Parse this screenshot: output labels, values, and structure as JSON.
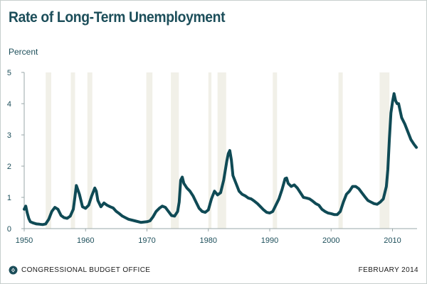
{
  "header": {
    "title": "Rate of Long-Term Unemployment"
  },
  "footer": {
    "org": "CONGRESSIONAL BUDGET OFFICE",
    "date": "FEBRUARY 2014",
    "logo_icon": "cbo-logo-icon"
  },
  "colors": {
    "line": "#0f4a55",
    "recession_band": "#f1f0e8",
    "axis": "#9aa7a8",
    "text": "#1c4e5a"
  },
  "chart_data": {
    "type": "line",
    "title": "Rate of Long-Term Unemployment",
    "ylabel": "Percent",
    "xlabel": "",
    "xlim": [
      1950,
      2014
    ],
    "ylim": [
      0,
      5
    ],
    "x_ticks": [
      1950,
      1960,
      1970,
      1980,
      1990,
      2000,
      2010
    ],
    "y_ticks": [
      0,
      1,
      2,
      3,
      4,
      5
    ],
    "grid": false,
    "recession_bands": [
      [
        1953.5,
        1954.4
      ],
      [
        1957.6,
        1958.3
      ],
      [
        1960.3,
        1961.1
      ],
      [
        1969.9,
        1970.9
      ],
      [
        1973.9,
        1975.2
      ],
      [
        1980.0,
        1980.5
      ],
      [
        1981.5,
        1982.9
      ],
      [
        1990.5,
        1991.2
      ],
      [
        2001.2,
        2001.9
      ],
      [
        2007.9,
        2009.5
      ]
    ],
    "series": [
      {
        "x": [
          1950.0,
          1950.25,
          1950.5,
          1950.75,
          1951.0,
          1951.5,
          1952.0,
          1952.5,
          1953.0,
          1953.5,
          1954.0,
          1954.5,
          1955.0,
          1955.5,
          1956.0,
          1956.5,
          1957.0,
          1957.5,
          1958.0,
          1958.25,
          1958.5,
          1959.0,
          1959.5,
          1960.0,
          1960.5,
          1961.0,
          1961.5,
          1961.75,
          1962.0,
          1962.5,
          1963.0,
          1963.5,
          1964.0,
          1964.5,
          1965.0,
          1965.5,
          1966.0,
          1966.5,
          1967.0,
          1968.0,
          1969.0,
          1970.0,
          1970.5,
          1971.0,
          1971.5,
          1972.0,
          1972.5,
          1973.0,
          1973.5,
          1974.0,
          1974.5,
          1975.0,
          1975.25,
          1975.5,
          1975.75,
          1976.0,
          1976.5,
          1977.0,
          1977.5,
          1978.0,
          1978.5,
          1979.0,
          1979.5,
          1980.0,
          1980.5,
          1981.0,
          1981.5,
          1982.0,
          1982.5,
          1983.0,
          1983.25,
          1983.5,
          1983.75,
          1984.0,
          1984.5,
          1985.0,
          1985.5,
          1986.0,
          1986.5,
          1987.0,
          1987.5,
          1988.0,
          1988.5,
          1989.0,
          1989.5,
          1990.0,
          1990.5,
          1991.0,
          1991.5,
          1992.0,
          1992.5,
          1992.75,
          1993.0,
          1993.5,
          1994.0,
          1994.5,
          1995.0,
          1995.5,
          1996.0,
          1996.5,
          1997.0,
          1997.5,
          1998.0,
          1998.5,
          1999.0,
          1999.5,
          2000.0,
          2000.5,
          2001.0,
          2001.5,
          2002.0,
          2002.5,
          2003.0,
          2003.5,
          2004.0,
          2004.5,
          2005.0,
          2005.5,
          2006.0,
          2006.5,
          2007.0,
          2007.5,
          2008.0,
          2008.5,
          2009.0,
          2009.25,
          2009.5,
          2009.75,
          2010.0,
          2010.25,
          2010.5,
          2010.75,
          2011.0,
          2011.5,
          2012.0,
          2012.5,
          2013.0,
          2013.5,
          2013.9
        ],
        "values": [
          0.62,
          0.72,
          0.5,
          0.32,
          0.22,
          0.18,
          0.15,
          0.14,
          0.13,
          0.15,
          0.3,
          0.55,
          0.68,
          0.62,
          0.42,
          0.35,
          0.33,
          0.4,
          0.62,
          1.0,
          1.38,
          1.1,
          0.7,
          0.65,
          0.75,
          1.05,
          1.3,
          1.2,
          0.9,
          0.7,
          0.82,
          0.75,
          0.7,
          0.66,
          0.55,
          0.48,
          0.4,
          0.35,
          0.3,
          0.25,
          0.2,
          0.22,
          0.25,
          0.38,
          0.55,
          0.65,
          0.72,
          0.68,
          0.55,
          0.42,
          0.4,
          0.55,
          0.85,
          1.55,
          1.65,
          1.45,
          1.3,
          1.2,
          1.05,
          0.85,
          0.65,
          0.55,
          0.52,
          0.6,
          0.95,
          1.2,
          1.08,
          1.15,
          1.55,
          2.15,
          2.4,
          2.5,
          2.2,
          1.7,
          1.45,
          1.2,
          1.1,
          1.05,
          0.98,
          0.95,
          0.88,
          0.8,
          0.7,
          0.6,
          0.52,
          0.5,
          0.55,
          0.75,
          0.95,
          1.25,
          1.6,
          1.62,
          1.45,
          1.35,
          1.4,
          1.3,
          1.15,
          1.0,
          0.98,
          0.95,
          0.88,
          0.8,
          0.75,
          0.62,
          0.55,
          0.5,
          0.48,
          0.45,
          0.45,
          0.55,
          0.85,
          1.1,
          1.2,
          1.35,
          1.35,
          1.28,
          1.15,
          1.02,
          0.9,
          0.85,
          0.8,
          0.78,
          0.85,
          0.95,
          1.35,
          1.9,
          2.9,
          3.7,
          4.05,
          4.32,
          4.1,
          4.0,
          4.0,
          3.55,
          3.35,
          3.1,
          2.85,
          2.7,
          2.6
        ]
      }
    ]
  }
}
